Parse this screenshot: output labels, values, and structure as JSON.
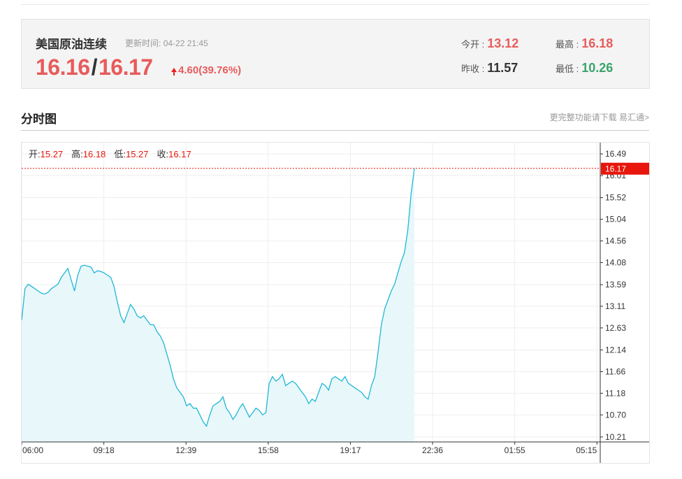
{
  "quote": {
    "name": "美国原油连续",
    "update_label": "更新时间:",
    "update_time": "04-22 21:45",
    "bid": "16.16",
    "separator": "/",
    "ask": "16.17",
    "change": "4.60(39.76%)",
    "open_label": "今开 :",
    "open": "13.12",
    "high_label": "最高 :",
    "high": "16.18",
    "prev_close_label": "昨收 :",
    "prev_close": "11.57",
    "low_label": "最低 :",
    "low": "10.26"
  },
  "section": {
    "title": "分时图",
    "link": "更完整功能请下载 易汇通>"
  },
  "ohlc_bar": {
    "open_label": "开:",
    "open": "15.27",
    "high_label": "高:",
    "high": "16.18",
    "low_label": "低:",
    "low": "15.27",
    "close_label": "收:",
    "close": "16.17"
  },
  "colors": {
    "up": "#e85b5b",
    "down": "#3aa36c",
    "line": "#1fb8d4",
    "area": "#e8f7fa",
    "current_tag": "#e8160c"
  },
  "chart_data": {
    "type": "area",
    "x_ticks": [
      "06:00",
      "09:18",
      "12:39",
      "15:58",
      "19:17",
      "22:36",
      "01:55",
      "05:15"
    ],
    "y_ticks": [
      16.49,
      16.01,
      15.52,
      15.04,
      14.56,
      14.08,
      13.59,
      13.11,
      12.63,
      12.14,
      11.66,
      11.18,
      10.7,
      10.21
    ],
    "ylim": [
      10.1,
      16.74
    ],
    "current_price": "16.17",
    "grid": true,
    "series": [
      {
        "values": [
          12.8,
          13.5,
          13.6,
          13.55,
          13.5,
          13.45,
          13.4,
          13.38,
          13.42,
          13.5,
          13.55,
          13.6,
          13.75,
          13.85,
          13.95,
          13.7,
          13.45,
          13.8,
          14.0,
          14.02,
          14.0,
          13.98,
          13.85,
          13.9,
          13.88,
          13.85,
          13.8,
          13.75,
          13.55,
          13.2,
          12.9,
          12.75,
          12.95,
          13.15,
          13.05,
          12.9,
          12.85,
          12.9,
          12.8,
          12.7,
          12.7,
          12.55,
          12.45,
          12.3,
          12.05,
          11.8,
          11.5,
          11.3,
          11.2,
          11.1,
          10.9,
          10.95,
          10.85,
          10.85,
          10.7,
          10.55,
          10.45,
          10.7,
          10.9,
          10.95,
          11.0,
          11.1,
          10.85,
          10.75,
          10.6,
          10.7,
          10.85,
          10.95,
          10.8,
          10.65,
          10.75,
          10.85,
          10.8,
          10.7,
          10.75,
          11.4,
          11.55,
          11.45,
          11.5,
          11.6,
          11.35,
          11.4,
          11.45,
          11.4,
          11.3,
          11.2,
          11.1,
          10.95,
          11.05,
          11.0,
          11.2,
          11.4,
          11.35,
          11.25,
          11.5,
          11.55,
          11.5,
          11.45,
          11.55,
          11.4,
          11.35,
          11.3,
          11.25,
          11.2,
          11.1,
          11.05,
          11.35,
          11.55,
          12.1,
          12.7,
          13.05,
          13.25,
          13.45,
          13.6,
          13.85,
          14.1,
          14.3,
          14.8,
          15.6,
          16.17
        ]
      }
    ]
  }
}
